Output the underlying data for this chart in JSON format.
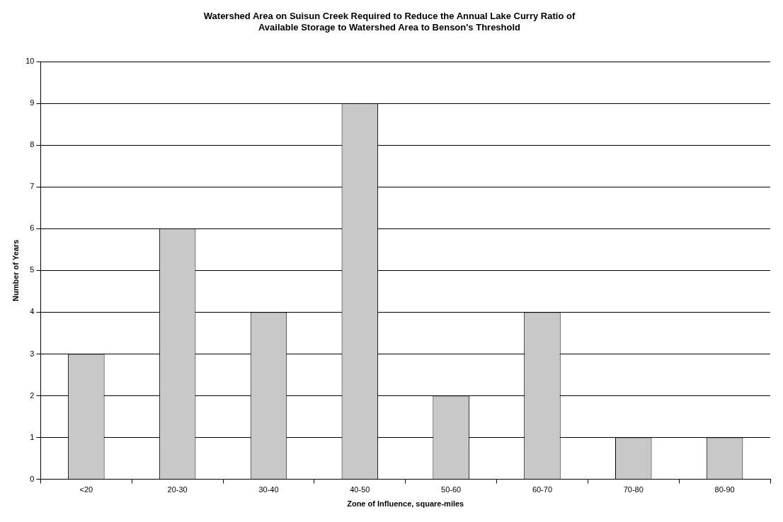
{
  "chart_data": {
    "type": "bar",
    "title": "Watershed Area on Suisun Creek Required to Reduce the Annual Lake Curry Ratio of\nAvailable Storage to Watershed Area to Benson's Threshold",
    "xlabel": "Zone of Influence, square-miles",
    "ylabel": "Number of Years",
    "categories": [
      "<20",
      "20-30",
      "30-40",
      "40-50",
      "50-60",
      "60-70",
      "70-80",
      "80-90"
    ],
    "values": [
      3,
      6,
      4,
      9,
      2,
      4,
      1,
      1
    ],
    "color": "#c8c8c8",
    "ylim": [
      0,
      10
    ],
    "yticks": [
      0,
      1,
      2,
      3,
      4,
      5,
      6,
      7,
      8,
      9,
      10
    ],
    "grid": "y",
    "legend": false
  }
}
